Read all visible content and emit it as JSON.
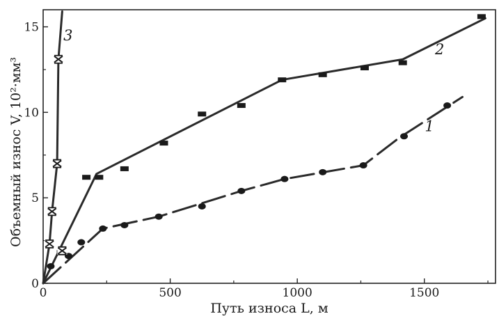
{
  "chart_data": {
    "type": "line",
    "title": "",
    "xlabel": "Путь износа L, м",
    "ylabel": "Объемный износ V, 10²·мм³",
    "xlim": [
      0,
      1780
    ],
    "ylim": [
      0,
      16
    ],
    "xticks": [
      0,
      500,
      1000,
      1500
    ],
    "yticks": [
      0,
      5,
      10,
      15
    ],
    "grid": false,
    "legend": "none",
    "series": [
      {
        "label": "1",
        "marker": "dot",
        "dashed": true,
        "points": [
          [
            30,
            1.0
          ],
          [
            100,
            1.6
          ],
          [
            150,
            2.4
          ],
          [
            235,
            3.2
          ],
          [
            320,
            3.4
          ],
          [
            455,
            3.9
          ],
          [
            625,
            4.5
          ],
          [
            780,
            5.4
          ],
          [
            950,
            6.1
          ],
          [
            1100,
            6.5
          ],
          [
            1260,
            6.9
          ],
          [
            1420,
            8.6
          ],
          [
            1590,
            10.4
          ]
        ],
        "line": [
          [
            0,
            0
          ],
          [
            235,
            3.2
          ],
          [
            455,
            3.9
          ],
          [
            780,
            5.4
          ],
          [
            950,
            6.1
          ],
          [
            1260,
            6.9
          ],
          [
            1400,
            8.5
          ],
          [
            1650,
            10.9
          ]
        ],
        "label_at": [
          1520,
          8.9
        ]
      },
      {
        "label": "2",
        "marker": "square",
        "dashed": false,
        "points": [
          [
            70,
            1.8
          ],
          [
            170,
            6.2
          ],
          [
            220,
            6.2
          ],
          [
            320,
            6.7
          ],
          [
            475,
            8.2
          ],
          [
            625,
            9.9
          ],
          [
            780,
            10.4
          ],
          [
            940,
            11.9
          ],
          [
            1100,
            12.2
          ],
          [
            1265,
            12.6
          ],
          [
            1415,
            12.9
          ],
          [
            1725,
            15.6
          ]
        ],
        "line": [
          [
            0,
            0
          ],
          [
            210,
            6.4
          ],
          [
            940,
            11.9
          ],
          [
            1415,
            13.1
          ],
          [
            1740,
            15.5
          ]
        ],
        "label_at": [
          1560,
          13.4
        ]
      },
      {
        "label": "3",
        "marker": "x",
        "dashed": false,
        "points": [
          [
            25,
            2.3
          ],
          [
            35,
            4.2
          ],
          [
            55,
            7.0
          ],
          [
            60,
            13.1
          ],
          [
            75,
            1.9
          ]
        ],
        "line": [
          [
            0,
            0
          ],
          [
            25,
            2.3
          ],
          [
            35,
            4.2
          ],
          [
            55,
            7.0
          ],
          [
            60,
            13.1
          ],
          [
            75,
            15.9
          ]
        ],
        "label_at": [
          98,
          14.2
        ]
      }
    ]
  }
}
